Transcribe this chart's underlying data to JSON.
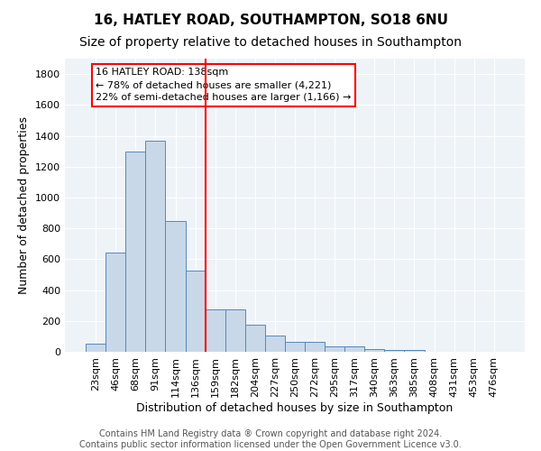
{
  "title": "16, HATLEY ROAD, SOUTHAMPTON, SO18 6NU",
  "subtitle": "Size of property relative to detached houses in Southampton",
  "xlabel": "Distribution of detached houses by size in Southampton",
  "ylabel": "Number of detached properties",
  "footer_line1": "Contains HM Land Registry data ® Crown copyright and database right 2024.",
  "footer_line2": "Contains public sector information licensed under the Open Government Licence v3.0.",
  "categories": [
    "23sqm",
    "46sqm",
    "68sqm",
    "91sqm",
    "114sqm",
    "136sqm",
    "159sqm",
    "182sqm",
    "204sqm",
    "227sqm",
    "250sqm",
    "272sqm",
    "295sqm",
    "317sqm",
    "340sqm",
    "363sqm",
    "385sqm",
    "408sqm",
    "431sqm",
    "453sqm",
    "476sqm"
  ],
  "values": [
    55,
    645,
    1300,
    1370,
    845,
    525,
    275,
    275,
    175,
    105,
    65,
    65,
    35,
    35,
    20,
    10,
    10,
    0,
    0,
    0,
    0
  ],
  "bar_color": "#c8d8e8",
  "bar_edge_color": "#5588bb",
  "vline_x": 5.5,
  "vline_color": "red",
  "annotation_line1": "16 HATLEY ROAD: 138sqm",
  "annotation_line2": "← 78% of detached houses are smaller (4,221)",
  "annotation_line3": "22% of semi-detached houses are larger (1,166) →",
  "annotation_box_color": "white",
  "annotation_edge_color": "red",
  "ylim": [
    0,
    1900
  ],
  "yticks": [
    0,
    200,
    400,
    600,
    800,
    1000,
    1200,
    1400,
    1600,
    1800
  ],
  "bg_color": "#eef3f8",
  "grid_color": "white",
  "title_fontsize": 11,
  "subtitle_fontsize": 10,
  "axis_label_fontsize": 9,
  "tick_fontsize": 8,
  "annotation_fontsize": 8,
  "footer_fontsize": 7
}
